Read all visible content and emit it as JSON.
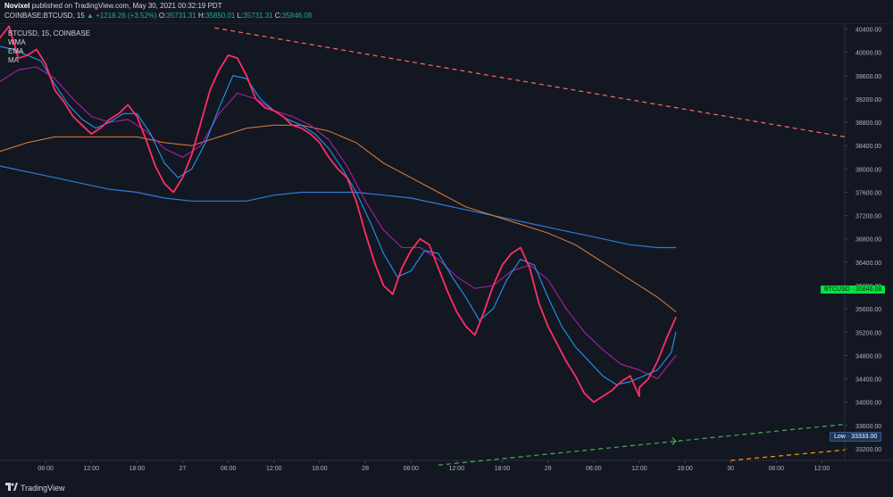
{
  "header": {
    "author": "Novixel",
    "published": "published on TradingView.com, May 30, 2021 00:32:19 PDT",
    "symbol": "COINBASE:BTCUSD, 15",
    "change": "▲ +1218.26 (+3.52%)",
    "o_label": "O:",
    "o_value": "35731.31",
    "h_label": "H:",
    "h_value": "35850.01",
    "l_label": "L:",
    "l_value": "35731.31",
    "c_label": "C:",
    "c_value": "35846.08"
  },
  "legend": {
    "symbol_line": "BTCUSD, 15, COINBASE",
    "items": [
      "WMA",
      "EMA",
      "MA"
    ]
  },
  "footer": {
    "brand": "TradingView"
  },
  "price_tag": {
    "symbol": "BTCUSD",
    "value": "35846.08"
  },
  "low_tag": {
    "label": "Low",
    "value": "33333.00"
  },
  "colors": {
    "background": "#131722",
    "price": "#ff2e63",
    "wma": "#2196f3",
    "ema": "#ab1fa5",
    "ma_long": "#e0803a",
    "ma_slow": "#2f7bd8",
    "trend_upper": "#ff6b5b",
    "trend_lower": "#4caf50",
    "trend_bottom": "#ff9800",
    "price_tag": "#00e63c"
  },
  "chart_data": {
    "type": "line",
    "y_ticks": [
      33200,
      33600,
      34000,
      34400,
      34800,
      35200,
      35600,
      36000,
      36400,
      36800,
      37200,
      37600,
      38000,
      38400,
      38800,
      39200,
      39600,
      40000,
      40400
    ],
    "ylim": [
      33000,
      40500
    ],
    "x_ticks": [
      {
        "x": 0.5,
        "label": "06:00"
      },
      {
        "x": 1,
        "label": "12:00"
      },
      {
        "x": 1.5,
        "label": "18:00"
      },
      {
        "x": 2,
        "label": "27"
      },
      {
        "x": 2.5,
        "label": "06:00"
      },
      {
        "x": 3,
        "label": "12:00"
      },
      {
        "x": 3.5,
        "label": "18:00"
      },
      {
        "x": 4,
        "label": "28"
      },
      {
        "x": 4.5,
        "label": "06:00"
      },
      {
        "x": 5,
        "label": "12:00"
      },
      {
        "x": 5.5,
        "label": "18:00"
      },
      {
        "x": 6,
        "label": "29"
      },
      {
        "x": 6.5,
        "label": "06:00"
      },
      {
        "x": 7,
        "label": "12:00"
      },
      {
        "x": 7.5,
        "label": "18:00"
      },
      {
        "x": 8,
        "label": "30"
      },
      {
        "x": 8.5,
        "label": "06:00"
      },
      {
        "x": 9,
        "label": "12:00"
      }
    ],
    "xlim": [
      0,
      9.25
    ],
    "series": [
      {
        "key": "price",
        "points": [
          [
            0,
            40250
          ],
          [
            0.1,
            40450
          ],
          [
            0.2,
            39900
          ],
          [
            0.3,
            39950
          ],
          [
            0.4,
            40050
          ],
          [
            0.5,
            39800
          ],
          [
            0.6,
            39350
          ],
          [
            0.7,
            39150
          ],
          [
            0.8,
            38900
          ],
          [
            0.9,
            38750
          ],
          [
            1,
            38600
          ],
          [
            1.1,
            38700
          ],
          [
            1.2,
            38850
          ],
          [
            1.3,
            38950
          ],
          [
            1.4,
            39100
          ],
          [
            1.5,
            38900
          ],
          [
            1.6,
            38500
          ],
          [
            1.7,
            38050
          ],
          [
            1.8,
            37750
          ],
          [
            1.9,
            37600
          ],
          [
            2,
            37850
          ],
          [
            2.1,
            38250
          ],
          [
            2.2,
            38800
          ],
          [
            2.3,
            39350
          ],
          [
            2.4,
            39700
          ],
          [
            2.5,
            39950
          ],
          [
            2.6,
            39900
          ],
          [
            2.7,
            39600
          ],
          [
            2.8,
            39200
          ],
          [
            2.9,
            39050
          ],
          [
            3,
            39000
          ],
          [
            3.1,
            38900
          ],
          [
            3.2,
            38750
          ],
          [
            3.3,
            38700
          ],
          [
            3.4,
            38600
          ],
          [
            3.5,
            38450
          ],
          [
            3.6,
            38200
          ],
          [
            3.7,
            38000
          ],
          [
            3.8,
            37850
          ],
          [
            3.9,
            37450
          ],
          [
            4,
            36900
          ],
          [
            4.1,
            36400
          ],
          [
            4.2,
            36000
          ],
          [
            4.3,
            35850
          ],
          [
            4.4,
            36300
          ],
          [
            4.5,
            36600
          ],
          [
            4.6,
            36800
          ],
          [
            4.7,
            36700
          ],
          [
            4.8,
            36300
          ],
          [
            4.9,
            35900
          ],
          [
            5,
            35550
          ],
          [
            5.1,
            35300
          ],
          [
            5.2,
            35150
          ],
          [
            5.3,
            35550
          ],
          [
            5.4,
            36000
          ],
          [
            5.5,
            36350
          ],
          [
            5.6,
            36550
          ],
          [
            5.7,
            36650
          ],
          [
            5.8,
            36300
          ],
          [
            5.9,
            35700
          ],
          [
            6,
            35300
          ],
          [
            6.1,
            35000
          ],
          [
            6.2,
            34700
          ],
          [
            6.3,
            34450
          ],
          [
            6.4,
            34150
          ],
          [
            6.5,
            34000
          ],
          [
            6.6,
            34100
          ],
          [
            6.7,
            34200
          ],
          [
            6.8,
            34350
          ],
          [
            6.9,
            34450
          ],
          [
            7,
            34100
          ],
          [
            7,
            34250
          ],
          [
            7.1,
            34400
          ],
          [
            7.2,
            34700
          ],
          [
            7.3,
            35100
          ],
          [
            7.4,
            35450
          ]
        ]
      },
      {
        "key": "wma",
        "points": [
          [
            0,
            40100
          ],
          [
            0.15,
            40050
          ],
          [
            0.3,
            39950
          ],
          [
            0.45,
            39850
          ],
          [
            0.6,
            39450
          ],
          [
            0.75,
            39100
          ],
          [
            0.9,
            38850
          ],
          [
            1.05,
            38700
          ],
          [
            1.2,
            38800
          ],
          [
            1.35,
            38950
          ],
          [
            1.5,
            38950
          ],
          [
            1.65,
            38600
          ],
          [
            1.8,
            38100
          ],
          [
            1.95,
            37850
          ],
          [
            2.1,
            38000
          ],
          [
            2.25,
            38450
          ],
          [
            2.4,
            39050
          ],
          [
            2.55,
            39600
          ],
          [
            2.7,
            39550
          ],
          [
            2.85,
            39200
          ],
          [
            3,
            39000
          ],
          [
            3.15,
            38850
          ],
          [
            3.3,
            38750
          ],
          [
            3.45,
            38600
          ],
          [
            3.6,
            38350
          ],
          [
            3.75,
            38000
          ],
          [
            3.9,
            37600
          ],
          [
            4.05,
            37100
          ],
          [
            4.2,
            36550
          ],
          [
            4.35,
            36150
          ],
          [
            4.5,
            36250
          ],
          [
            4.65,
            36600
          ],
          [
            4.8,
            36550
          ],
          [
            4.95,
            36150
          ],
          [
            5.1,
            35800
          ],
          [
            5.25,
            35400
          ],
          [
            5.4,
            35600
          ],
          [
            5.55,
            36100
          ],
          [
            5.7,
            36450
          ],
          [
            5.85,
            36350
          ],
          [
            6,
            35800
          ],
          [
            6.15,
            35300
          ],
          [
            6.3,
            34950
          ],
          [
            6.45,
            34700
          ],
          [
            6.6,
            34450
          ],
          [
            6.75,
            34300
          ],
          [
            6.9,
            34350
          ],
          [
            7.05,
            34450
          ],
          [
            7.2,
            34550
          ],
          [
            7.35,
            34850
          ],
          [
            7.4,
            35200
          ]
        ]
      },
      {
        "key": "ema",
        "points": [
          [
            0,
            39500
          ],
          [
            0.2,
            39700
          ],
          [
            0.4,
            39750
          ],
          [
            0.6,
            39550
          ],
          [
            0.8,
            39200
          ],
          [
            1,
            38900
          ],
          [
            1.2,
            38800
          ],
          [
            1.4,
            38850
          ],
          [
            1.6,
            38650
          ],
          [
            1.8,
            38350
          ],
          [
            2,
            38200
          ],
          [
            2.2,
            38400
          ],
          [
            2.4,
            38950
          ],
          [
            2.6,
            39300
          ],
          [
            2.8,
            39200
          ],
          [
            3,
            39000
          ],
          [
            3.2,
            38900
          ],
          [
            3.4,
            38750
          ],
          [
            3.6,
            38500
          ],
          [
            3.8,
            38050
          ],
          [
            4,
            37450
          ],
          [
            4.2,
            36950
          ],
          [
            4.4,
            36650
          ],
          [
            4.6,
            36650
          ],
          [
            4.8,
            36450
          ],
          [
            5,
            36150
          ],
          [
            5.2,
            35950
          ],
          [
            5.4,
            36000
          ],
          [
            5.6,
            36250
          ],
          [
            5.8,
            36350
          ],
          [
            6,
            36100
          ],
          [
            6.2,
            35600
          ],
          [
            6.4,
            35200
          ],
          [
            6.6,
            34900
          ],
          [
            6.8,
            34650
          ],
          [
            7,
            34550
          ],
          [
            7.2,
            34400
          ],
          [
            7.4,
            34800
          ]
        ]
      },
      {
        "key": "ma_long",
        "points": [
          [
            0,
            38300
          ],
          [
            0.3,
            38450
          ],
          [
            0.6,
            38550
          ],
          [
            0.9,
            38550
          ],
          [
            1.2,
            38550
          ],
          [
            1.5,
            38550
          ],
          [
            1.8,
            38450
          ],
          [
            2.1,
            38400
          ],
          [
            2.4,
            38550
          ],
          [
            2.7,
            38700
          ],
          [
            3,
            38750
          ],
          [
            3.3,
            38750
          ],
          [
            3.6,
            38650
          ],
          [
            3.9,
            38450
          ],
          [
            4.2,
            38100
          ],
          [
            4.5,
            37850
          ],
          [
            4.8,
            37600
          ],
          [
            5.1,
            37350
          ],
          [
            5.4,
            37200
          ],
          [
            5.7,
            37050
          ],
          [
            6,
            36900
          ],
          [
            6.3,
            36700
          ],
          [
            6.6,
            36400
          ],
          [
            6.9,
            36100
          ],
          [
            7.2,
            35800
          ],
          [
            7.4,
            35550
          ]
        ]
      },
      {
        "key": "ma_slow",
        "points": [
          [
            0,
            38050
          ],
          [
            0.3,
            37950
          ],
          [
            0.6,
            37850
          ],
          [
            0.9,
            37750
          ],
          [
            1.2,
            37650
          ],
          [
            1.5,
            37600
          ],
          [
            1.8,
            37500
          ],
          [
            2.1,
            37450
          ],
          [
            2.4,
            37450
          ],
          [
            2.7,
            37450
          ],
          [
            3,
            37550
          ],
          [
            3.3,
            37600
          ],
          [
            3.6,
            37600
          ],
          [
            3.9,
            37600
          ],
          [
            4.2,
            37550
          ],
          [
            4.5,
            37500
          ],
          [
            4.8,
            37400
          ],
          [
            5.1,
            37300
          ],
          [
            5.4,
            37200
          ],
          [
            5.7,
            37100
          ],
          [
            6,
            37000
          ],
          [
            6.3,
            36900
          ],
          [
            6.6,
            36800
          ],
          [
            6.9,
            36700
          ],
          [
            7.2,
            36650
          ],
          [
            7.4,
            36650
          ]
        ]
      }
    ],
    "trendlines": [
      {
        "key": "trend_upper",
        "from": [
          2.35,
          40420
        ],
        "to": [
          9.25,
          38550
        ],
        "dash": true
      },
      {
        "key": "trend_lower",
        "from": [
          4.8,
          32920
        ],
        "to": [
          9.25,
          33620
        ],
        "dash": true,
        "arrow_at": 7.4
      },
      {
        "key": "trend_bottom",
        "from": [
          8.0,
          33000
        ],
        "to": [
          9.25,
          33180
        ],
        "dash": true
      }
    ]
  }
}
